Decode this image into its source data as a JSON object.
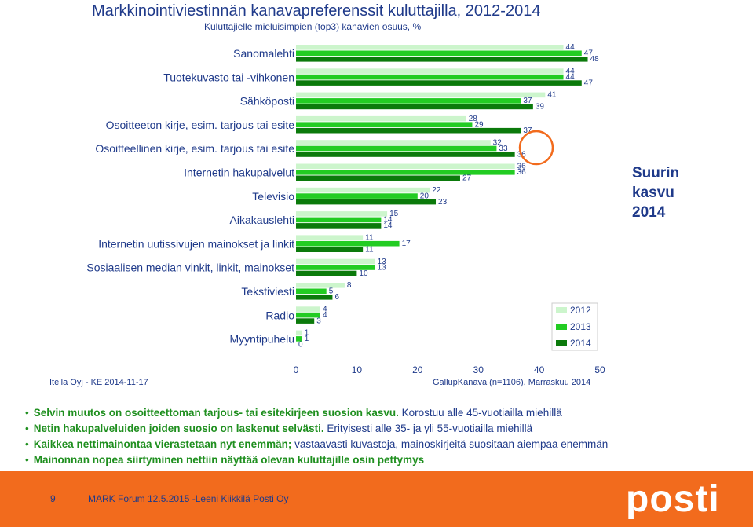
{
  "header": {
    "title": "Markkinointiviestinnän kanavapreferenssit kuluttajilla, 2012-2014",
    "subtitle": "Kuluttajielle mieluisimpien (top3) kanavien osuus, %"
  },
  "chart_data": {
    "type": "bar",
    "orientation": "horizontal",
    "categories": [
      "Sanomalehti",
      "Tuotekuvasto tai -vihkonen",
      "Sähköposti",
      "Osoitteeton kirje, esim. tarjous tai esite",
      "Osoitteellinen kirje, esim. tarjous tai esite",
      "Internetin hakupalvelut",
      "Televisio",
      "Aikakauslehti",
      "Internetin uutissivujen mainokset ja linkit",
      "Sosiaalisen median vinkit, linkit, mainokset",
      "Tekstiviesti",
      "Radio",
      "Myyntipuhelu"
    ],
    "series": [
      {
        "name": "2012",
        "values": [
          44,
          44,
          41,
          28,
          32,
          36,
          22,
          15,
          11,
          13,
          8,
          4,
          1
        ],
        "color": "#ccf5cc"
      },
      {
        "name": "2013",
        "values": [
          47,
          44,
          37,
          29,
          33,
          36,
          20,
          14,
          17,
          13,
          5,
          4,
          1
        ],
        "color": "#22cc22"
      },
      {
        "name": "2014",
        "values": [
          48,
          47,
          39,
          37,
          36,
          27,
          23,
          14,
          11,
          10,
          6,
          3,
          0
        ],
        "color": "#0b7a0b"
      }
    ],
    "xlim": [
      0,
      50
    ],
    "xticks": [
      0,
      10,
      20,
      30,
      40,
      50
    ],
    "legend_position": "bottom-right",
    "grid": false
  },
  "notes": {
    "source_left": "Itella Oyj - KE 2014-11-17",
    "source_right": "GallupKanava (n=1106), Marraskuu 2014",
    "callout": "Suurin kasvu 2014"
  },
  "bullets": [
    {
      "hl": "Selvin muutos on osoitteettoman tarjous- tai esitekirjeen suosion kasvu.",
      "rest": " Korostuu alle 45-vuotiailla miehillä"
    },
    {
      "hl": "Netin hakupalveluiden joiden suosio on laskenut selvästi.",
      "rest": " Erityisesti alle 35- ja yli 55-vuotiailla miehillä"
    },
    {
      "hl": "Kaikkea nettimainontaa vierastetaan nyt enemmän;",
      "rest": " vastaavasti kuvastoja, mainoskirjeitä suositaan aiempaa enemmän"
    },
    {
      "hl": "Mainonnan nopea siirtyminen nettiin näyttää olevan kuluttajille osin pettymys",
      "rest": ""
    }
  ],
  "footer": {
    "page": "9",
    "text": "MARK Forum 12.5.2015 -Leeni Kiikkilä Posti Oy",
    "logo": "posti"
  },
  "colors": {
    "title": "#1f3a8a",
    "accent": "#1f8f1f",
    "footer_bg": "#f26b1d",
    "highlight_circle": "#f26b1d"
  }
}
